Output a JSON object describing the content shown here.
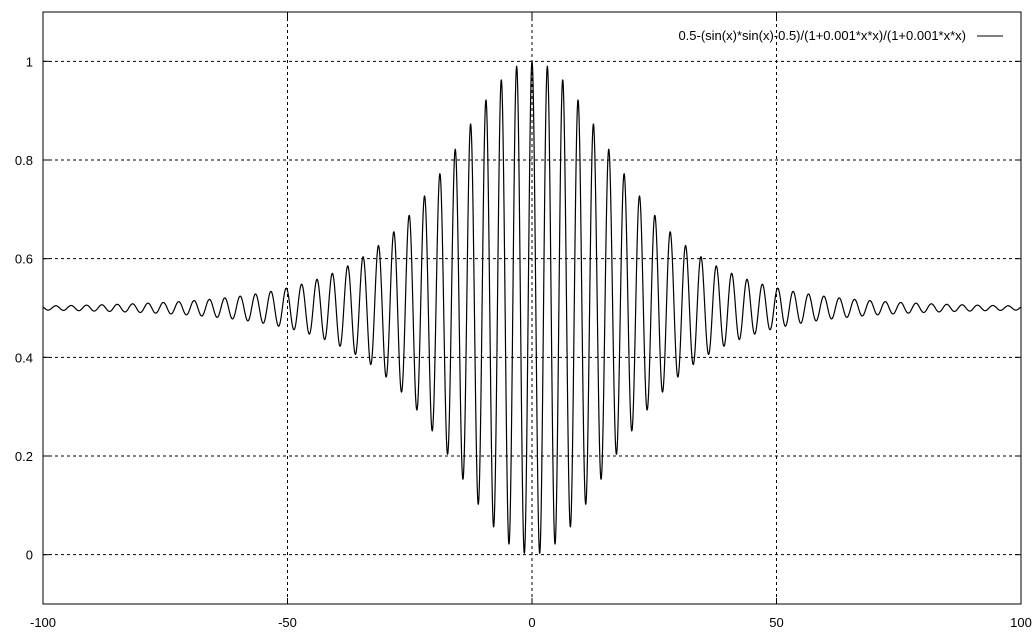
{
  "chart_data": {
    "type": "line",
    "title": "",
    "xlabel": "",
    "ylabel": "",
    "xlim": [
      -100,
      100
    ],
    "ylim": [
      -0.1,
      1.1
    ],
    "grid": true,
    "legend_position": "top-right",
    "x_ticks": [
      -100,
      -50,
      0,
      50,
      100
    ],
    "x_tick_labels": [
      "-100",
      "-50",
      "0",
      "50",
      "100"
    ],
    "y_ticks": [
      0,
      0.2,
      0.4,
      0.6,
      0.8,
      1
    ],
    "y_tick_labels": [
      "0",
      "0.2",
      "0.4",
      "0.6",
      "0.8",
      "1"
    ],
    "series": [
      {
        "name": "0.5-(sin(x)*sin(x)-0.5)/(1+0.001*x*x)/(1+0.001*x*x)",
        "function": "0.5-(sin(x)*sin(x)-0.5)/(1+0.001*x*x)/(1+0.001*x*x)",
        "color": "#000000"
      }
    ]
  }
}
